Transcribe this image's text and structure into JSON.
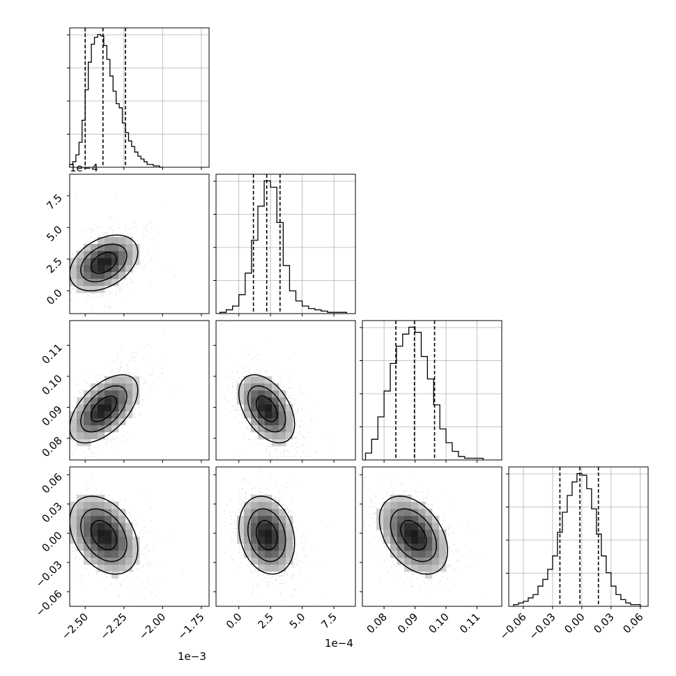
{
  "chart_data": {
    "type": "corner",
    "grid": true,
    "quantile_lines": "dashed",
    "parameters": [
      {
        "id": "p0",
        "range": [
          -2.6,
          -1.7
        ],
        "ticks": [
          -2.5,
          -2.25,
          -2.0,
          -1.75
        ],
        "tick_labels": [
          "−2.50",
          "−2.25",
          "−2.00",
          "−1.75"
        ],
        "offset_label": "1e−3",
        "quantiles": [
          -2.5,
          -2.385,
          -2.24
        ],
        "hist_bins": [
          -2.6,
          -2.58,
          -2.56,
          -2.54,
          -2.52,
          -2.5,
          -2.48,
          -2.46,
          -2.44,
          -2.42,
          -2.4,
          -2.38,
          -2.36,
          -2.34,
          -2.32,
          -2.3,
          -2.28,
          -2.26,
          -2.24,
          -2.22,
          -2.2,
          -2.18,
          -2.16,
          -2.14,
          -2.12,
          -2.1,
          -2.08,
          -2.06,
          -2.04,
          -2.02,
          -2.0
        ],
        "hist_counts": [
          2,
          4,
          9,
          18,
          34,
          56,
          76,
          89,
          94,
          96,
          95,
          88,
          78,
          66,
          55,
          46,
          43,
          32,
          25,
          19,
          15,
          11,
          8,
          6,
          4,
          2,
          2,
          1,
          1,
          0
        ]
      },
      {
        "id": "p1",
        "range": [
          -1.8,
          9.2
        ],
        "ticks": [
          0.0,
          2.5,
          5.0,
          7.5
        ],
        "tick_labels": [
          "0.0",
          "2.5",
          "5.0",
          "7.5"
        ],
        "offset_label": "1e−4",
        "quantiles": [
          1.15,
          2.2,
          3.25
        ],
        "hist_bins": [
          -1.5,
          -1.0,
          -0.5,
          0.0,
          0.5,
          1.0,
          1.5,
          2.0,
          2.5,
          3.0,
          3.5,
          4.0,
          4.5,
          5.0,
          5.5,
          6.0,
          6.5,
          7.0,
          7.5,
          8.0,
          8.5
        ],
        "hist_counts": [
          1,
          3,
          6,
          15,
          32,
          58,
          85,
          105,
          100,
          72,
          38,
          18,
          10,
          6,
          4,
          3,
          2,
          1,
          1,
          1
        ]
      },
      {
        "id": "p2",
        "range": [
          0.073,
          0.118
        ],
        "ticks": [
          0.08,
          0.09,
          0.1,
          0.11
        ],
        "tick_labels": [
          "0.08",
          "0.09",
          "0.10",
          "0.11"
        ],
        "offset_label": "",
        "quantiles": [
          0.0838,
          0.0898,
          0.0963
        ],
        "hist_bins": [
          0.074,
          0.076,
          0.078,
          0.08,
          0.082,
          0.084,
          0.086,
          0.088,
          0.09,
          0.092,
          0.094,
          0.096,
          0.098,
          0.1,
          0.102,
          0.104,
          0.106,
          0.108,
          0.11,
          0.112
        ],
        "hist_counts": [
          4,
          12,
          25,
          40,
          56,
          66,
          73,
          77,
          74,
          60,
          47,
          32,
          18,
          10,
          5,
          2,
          1,
          1,
          1
        ]
      },
      {
        "id": "p3",
        "range": [
          -0.075,
          0.068
        ],
        "ticks": [
          -0.06,
          -0.03,
          0.0,
          0.03,
          0.06
        ],
        "tick_labels": [
          "−0.06",
          "−0.03",
          "0.00",
          "0.03",
          "0.06"
        ],
        "offset_label": "",
        "quantiles": [
          -0.0225,
          -0.002,
          0.017
        ],
        "hist_bins": [
          -0.07,
          -0.065,
          -0.06,
          -0.055,
          -0.05,
          -0.045,
          -0.04,
          -0.035,
          -0.03,
          -0.025,
          -0.02,
          -0.015,
          -0.01,
          -0.005,
          0.0,
          0.005,
          0.01,
          0.015,
          0.02,
          0.025,
          0.03,
          0.035,
          0.04,
          0.045,
          0.05,
          0.055,
          0.06
        ],
        "hist_counts": [
          1,
          2,
          3,
          5,
          7,
          12,
          16,
          22,
          30,
          44,
          56,
          66,
          74,
          79,
          78,
          70,
          58,
          43,
          30,
          20,
          12,
          7,
          4,
          2,
          1,
          1
        ]
      }
    ],
    "pairs": [
      {
        "x": "p0",
        "y": "p1",
        "center": [
          -2.38,
          2.2
        ],
        "sigma": [
          0.11,
          1.1
        ],
        "rho": 0.38
      },
      {
        "x": "p0",
        "y": "p2",
        "center": [
          -2.38,
          0.0895
        ],
        "sigma": [
          0.11,
          0.0055
        ],
        "rho": 0.55
      },
      {
        "x": "p1",
        "y": "p2",
        "center": [
          2.2,
          0.0895
        ],
        "sigma": [
          1.1,
          0.0055
        ],
        "rho": -0.45
      },
      {
        "x": "p0",
        "y": "p3",
        "center": [
          -2.38,
          -0.002
        ],
        "sigma": [
          0.11,
          0.02
        ],
        "rho": -0.35
      },
      {
        "x": "p1",
        "y": "p3",
        "center": [
          2.2,
          -0.002
        ],
        "sigma": [
          1.1,
          0.02
        ],
        "rho": -0.2
      },
      {
        "x": "p2",
        "y": "p3",
        "center": [
          0.0895,
          -0.002
        ],
        "sigma": [
          0.0055,
          0.02
        ],
        "rho": -0.4
      }
    ]
  }
}
